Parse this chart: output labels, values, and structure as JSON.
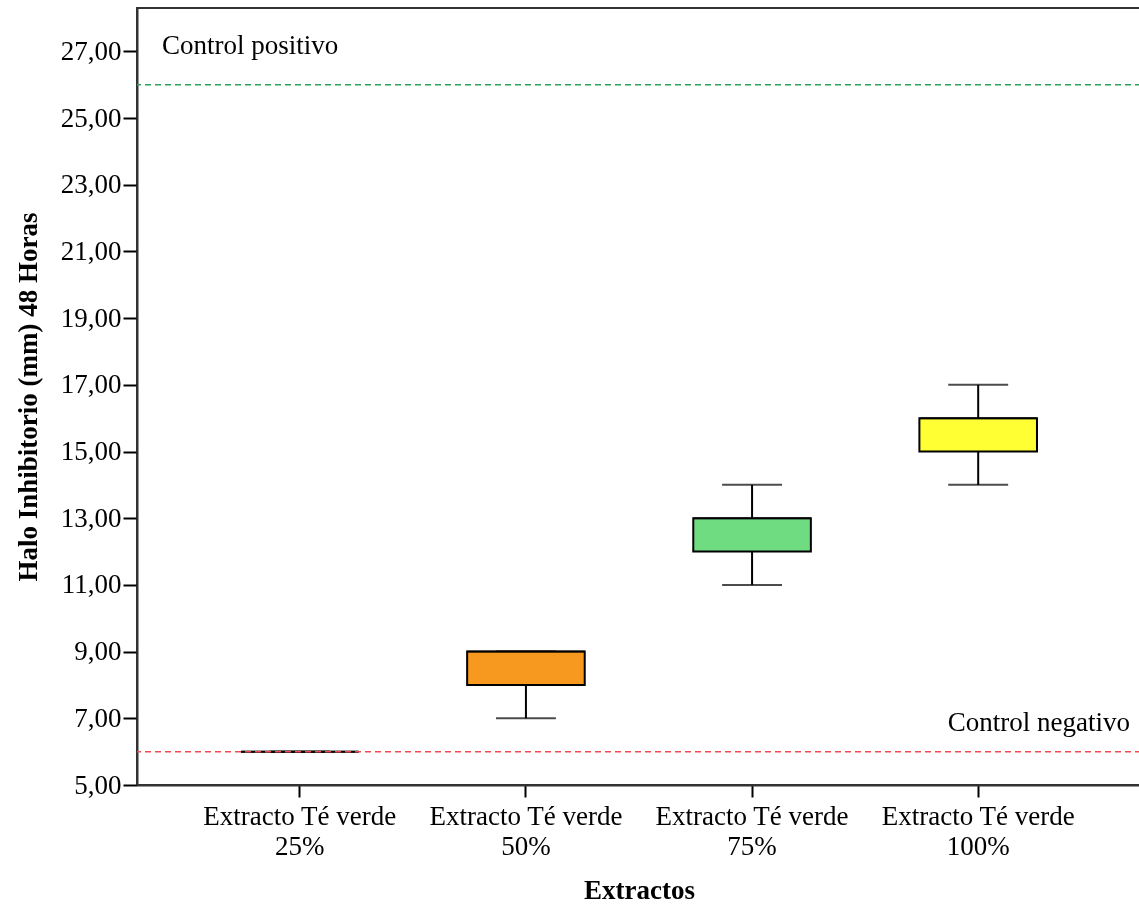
{
  "chart_data": {
    "type": "box",
    "xlabel": "Extractos",
    "ylabel": "Halo Inhibitorio (mm) 48 Horas",
    "categories": [
      "Extracto Té verde 25%",
      "Extracto Té verde 50%",
      "Extracto Té verde 75%",
      "Extracto Té verde 100%"
    ],
    "boxes": [
      {
        "low": 6,
        "q1": 6,
        "median": 6,
        "q3": 6,
        "high": 6
      },
      {
        "low": 7,
        "q1": 8,
        "median": 9,
        "q3": 9,
        "high": 9
      },
      {
        "low": 11,
        "q1": 12,
        "median": 13,
        "q3": 13,
        "high": 14
      },
      {
        "low": 14,
        "q1": 15,
        "median": 16,
        "q3": 16,
        "high": 17
      }
    ],
    "colors": [
      "#000000",
      "#f7991f",
      "#6fdc82",
      "#ffff33"
    ],
    "ylim": [
      5,
      28.3
    ],
    "yticks": [
      {
        "value": 5,
        "label": "5,00"
      },
      {
        "value": 7,
        "label": "7,00"
      },
      {
        "value": 9,
        "label": "9,00"
      },
      {
        "value": 11,
        "label": "11,00"
      },
      {
        "value": 13,
        "label": "13,00"
      },
      {
        "value": 15,
        "label": "15,00"
      },
      {
        "value": 17,
        "label": "17,00"
      },
      {
        "value": 19,
        "label": "19,00"
      },
      {
        "value": 21,
        "label": "21,00"
      },
      {
        "value": 23,
        "label": "23,00"
      },
      {
        "value": 25,
        "label": "25,00"
      },
      {
        "value": 27,
        "label": "27,00"
      }
    ],
    "ref_lines": [
      {
        "axis": "y",
        "value": 26,
        "label": "Control positivo",
        "color": "#2ca25f",
        "line_style": "dashed"
      },
      {
        "axis": "y",
        "value": 6,
        "label": "Control negativo",
        "color": "#f04b55",
        "line_style": "dashed"
      }
    ]
  }
}
